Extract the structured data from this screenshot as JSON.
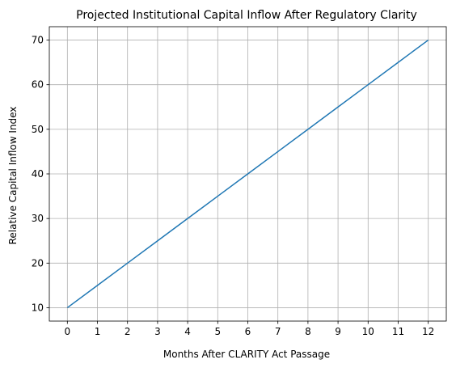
{
  "chart_data": {
    "type": "line",
    "title": "Projected Institutional Capital Inflow After Regulatory Clarity",
    "xlabel": "Months After CLARITY Act Passage",
    "ylabel": "Relative Capital Inflow Index",
    "x": [
      0,
      1,
      2,
      3,
      4,
      5,
      6,
      7,
      8,
      9,
      10,
      11,
      12
    ],
    "series": [
      {
        "values": [
          10,
          15,
          20,
          25,
          30,
          35,
          40,
          45,
          50,
          55,
          60,
          65,
          70
        ],
        "color": "#1f77b4"
      }
    ],
    "xticks": [
      "0",
      "1",
      "2",
      "3",
      "4",
      "5",
      "6",
      "7",
      "8",
      "9",
      "10",
      "11",
      "12"
    ],
    "yticks": [
      "10",
      "20",
      "30",
      "40",
      "50",
      "60",
      "70"
    ],
    "xlim": [
      -0.6,
      12.6
    ],
    "ylim": [
      7,
      73
    ],
    "grid": true,
    "grid_color": "#b0b0b0"
  }
}
